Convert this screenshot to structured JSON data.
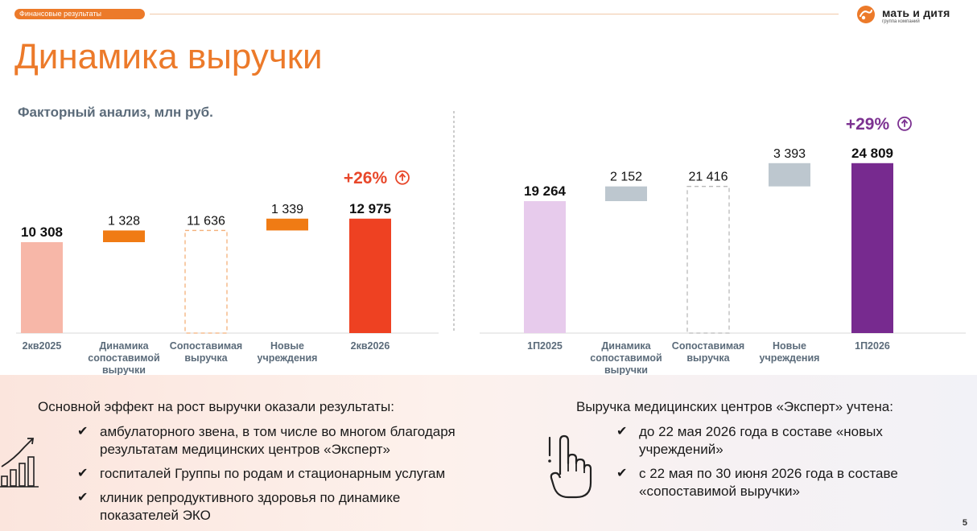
{
  "header": {
    "section_label": "Финансовые результаты",
    "logo": {
      "name": "мать и дитя",
      "sub": "группа компаний"
    }
  },
  "page": {
    "title": "Динамика выручки",
    "subtitle": "Факторный анализ, млн руб.",
    "number": "5"
  },
  "colors": {
    "accent": "#ec7a2a",
    "q_base": "#f7b7a8",
    "q_factor": "#f07b14",
    "q_total": "#ee4122",
    "h_base": "#e7cbec",
    "h_factor": "#bdc7cf",
    "h_total": "#772a8f",
    "q_growth": "#e8472a",
    "h_growth": "#7c3191"
  },
  "chart_data": [
    {
      "type": "bar",
      "subtype": "waterfall",
      "title": "Факторный анализ, млн руб.",
      "categories": [
        "2кв2025",
        "Динамика сопоставимой выручки",
        "Сопоставимая выручка",
        "Новые учреждения",
        "2кв2026"
      ],
      "bars": [
        {
          "label": "2кв2025",
          "kind": "total",
          "from": 0,
          "to": 10308,
          "value_label": "10 308"
        },
        {
          "label": "Динамика сопоставимой выручки",
          "kind": "delta",
          "from": 10308,
          "to": 11636,
          "value_label": "1 328"
        },
        {
          "label": "Сопоставимая выручка",
          "kind": "subtotal",
          "from": 0,
          "to": 11636,
          "value_label": "11 636"
        },
        {
          "label": "Новые учреждения",
          "kind": "delta",
          "from": 11636,
          "to": 12975,
          "value_label": "1 339"
        },
        {
          "label": "2кв2026",
          "kind": "total",
          "from": 0,
          "to": 12975,
          "value_label": "12 975"
        }
      ],
      "growth": "+26%",
      "ylim": [
        0,
        13000
      ]
    },
    {
      "type": "bar",
      "subtype": "waterfall",
      "categories": [
        "1П2025",
        "Динамика сопоставимой выручки",
        "Сопоставимая выручка",
        "Новые учреждения",
        "1П2026"
      ],
      "bars": [
        {
          "label": "1П2025",
          "kind": "total",
          "from": 0,
          "to": 19264,
          "value_label": "19 264"
        },
        {
          "label": "Динамика сопоставимой выручки",
          "kind": "delta",
          "from": 19264,
          "to": 21416,
          "value_label": "2 152"
        },
        {
          "label": "Сопоставимая выручка",
          "kind": "subtotal",
          "from": 0,
          "to": 21416,
          "value_label": "21 416"
        },
        {
          "label": "Новые учреждения",
          "kind": "delta",
          "from": 21416,
          "to": 24809,
          "value_label": "3 393"
        },
        {
          "label": "1П2026",
          "kind": "total",
          "from": 0,
          "to": 24809,
          "value_label": "24 809"
        }
      ],
      "growth": "+29%",
      "ylim": [
        0,
        24809
      ]
    }
  ],
  "notes": {
    "left": {
      "heading": "Основной эффект на рост выручки оказали результаты:",
      "items": [
        [
          "амбулаторного звена, в том числе во многом благодаря",
          "результатам медицинских центров «Эксперт»"
        ],
        [
          "госпиталей Группы по родам и стационарным услугам"
        ],
        [
          "клиник репродуктивного здоровья по динамике",
          "показателей ЭКО"
        ]
      ]
    },
    "right": {
      "heading": "Выручка медицинских центров «Эксперт» учтена:",
      "items": [
        [
          "до 22 мая 2026 года в составе «новых",
          "учреждений»"
        ],
        [
          "с 22 мая по 30 июня 2026 года в составе",
          "«сопоставимой выручки»"
        ]
      ]
    }
  }
}
